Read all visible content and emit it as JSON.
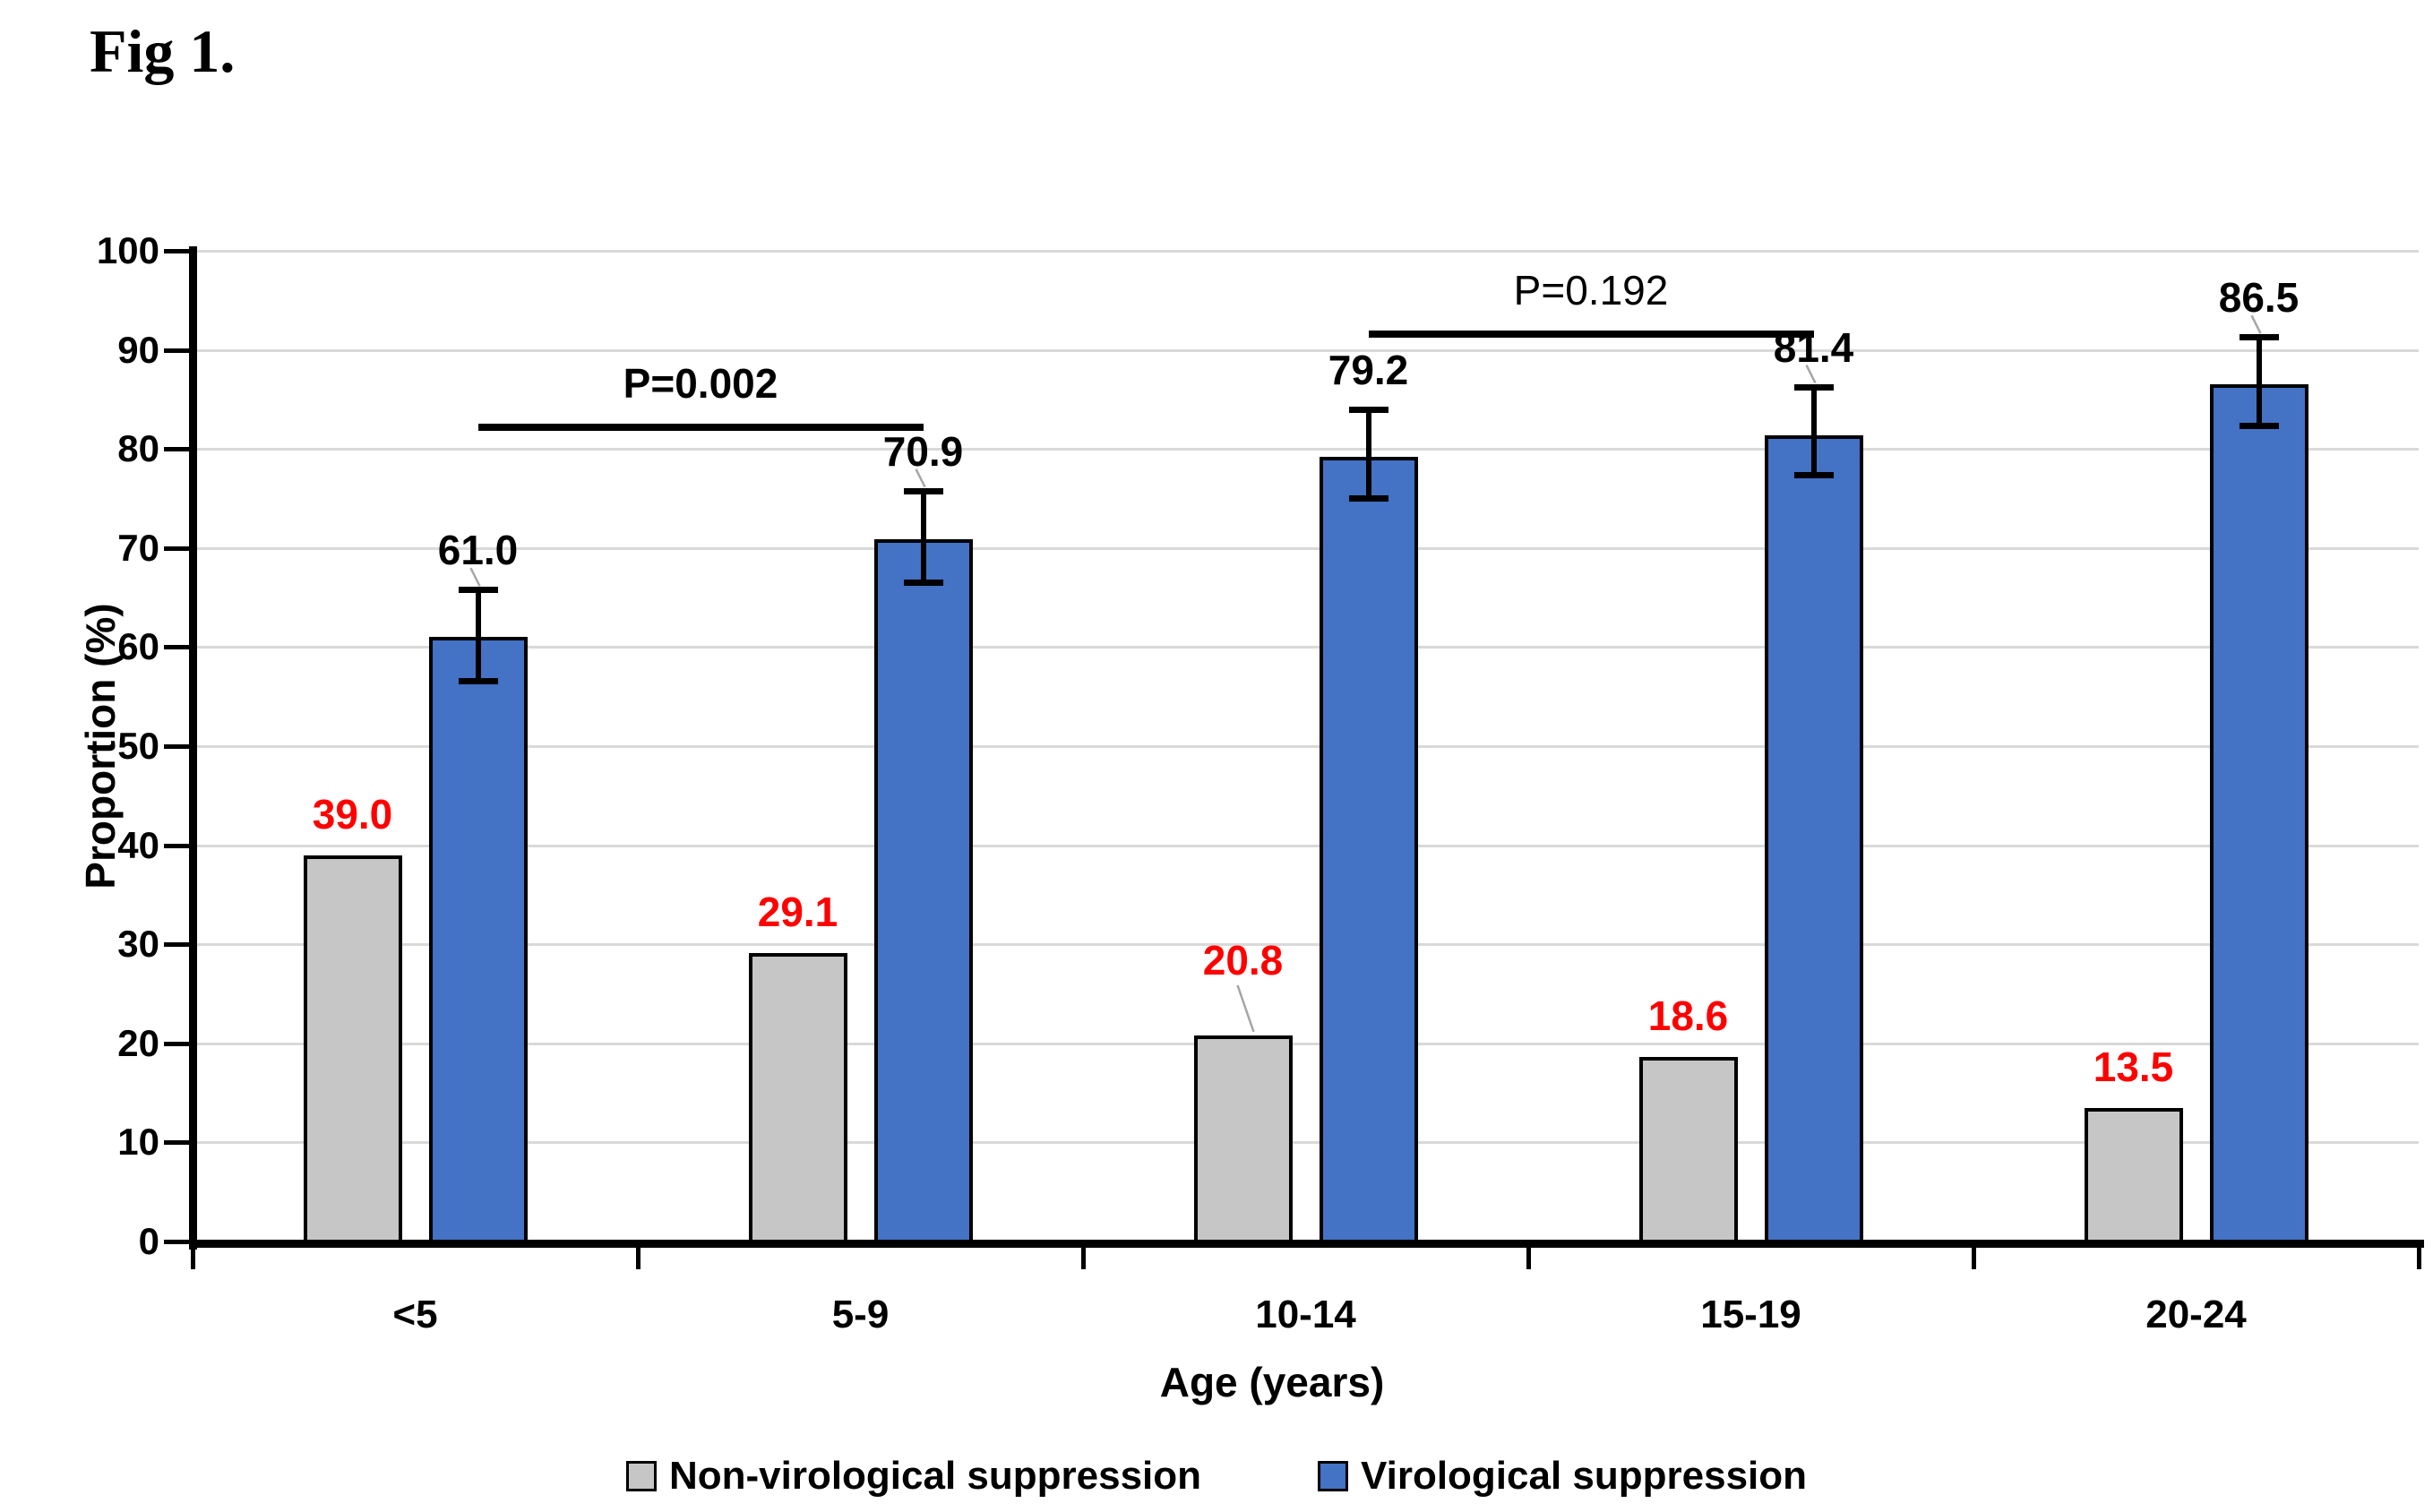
{
  "figure_label": "Fig 1.",
  "chart_data": {
    "type": "bar",
    "title": "Fig 1.",
    "xlabel": "Age (years)",
    "ylabel": "Proportion  (%)",
    "ylim": [
      0,
      100
    ],
    "ytick_step": 10,
    "grid": true,
    "legend_position": "bottom",
    "categories": [
      "<5",
      "5-9",
      "10-14",
      "15-19",
      "20-24"
    ],
    "series": [
      {
        "name": "Non-virological suppression",
        "color": "#c6c6c6",
        "label_color": "#ff0000",
        "values": [
          39.0,
          29.1,
          20.8,
          18.6,
          13.5
        ],
        "labels": [
          "39.0",
          "29.1",
          "20.8",
          "18.6",
          "13.5"
        ],
        "label_leader": [
          false,
          false,
          true,
          false,
          false
        ]
      },
      {
        "name": "Virological suppression",
        "color": "#4472c4",
        "label_color": "#000000",
        "values": [
          61.0,
          70.9,
          79.2,
          81.4,
          86.5
        ],
        "labels": [
          "61.0",
          "70.9",
          "79.2",
          "81.4",
          "86.5"
        ],
        "error_low": [
          56.5,
          66.5,
          75.0,
          77.3,
          82.3
        ],
        "error_high": [
          65.8,
          75.8,
          84.0,
          86.3,
          91.3
        ],
        "label_leader": [
          true,
          true,
          false,
          true,
          true
        ]
      }
    ],
    "annotations": [
      {
        "label": "P=0.002",
        "bold": true,
        "series": 1,
        "from_category": 0,
        "to_category": 1,
        "line_value": 82.2,
        "label_value": 86.6
      },
      {
        "label": "P=0.192",
        "bold": false,
        "series": 1,
        "from_category": 2,
        "to_category": 3,
        "line_value": 91.6,
        "label_value": 96.0
      }
    ]
  }
}
